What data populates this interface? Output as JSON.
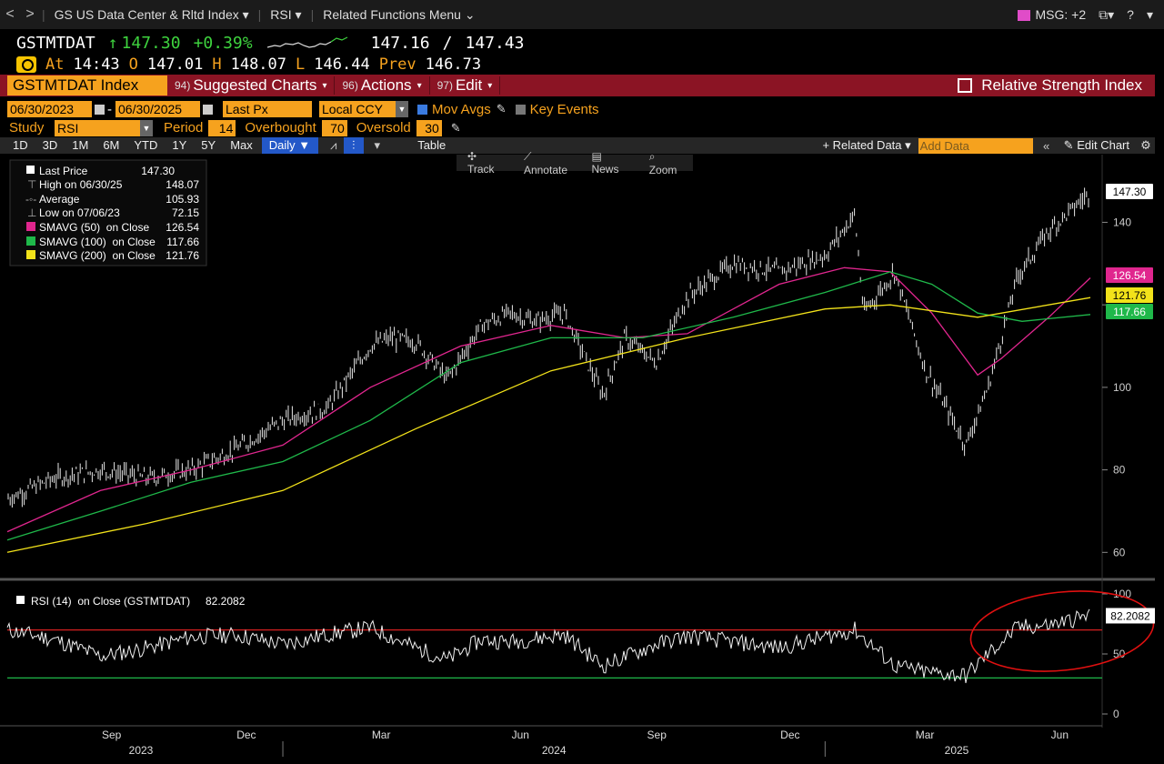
{
  "nav": {
    "back": "<",
    "forward": ">",
    "index_menu": "GS US Data Center & Rltd Index",
    "study_menu": "RSI",
    "related_menu": "Related Functions Menu",
    "msg": "MSG: +2"
  },
  "quote": {
    "ticker": "GSTMTDAT",
    "arrow": "↑",
    "last": "147.30",
    "change_pct": "+0.39%",
    "bid": "147.16",
    "slash": "/",
    "ask": "147.43",
    "at_label": "At",
    "time": "14:43",
    "open_label": "O",
    "open": "147.01",
    "high_label": "H",
    "high": "148.07",
    "low_label": "L",
    "low": "146.44",
    "prev_label": "Prev",
    "prev": "146.73"
  },
  "funcbar": {
    "security": "GSTMTDAT Index",
    "menu1_num": "94)",
    "menu1": "Suggested Charts",
    "menu2_num": "96)",
    "menu2": "Actions",
    "menu3_num": "97)",
    "menu3": "Edit",
    "title": "Relative Strength Index"
  },
  "settings": {
    "start_date": "06/30/2023",
    "dash": "-",
    "end_date": "06/30/2025",
    "field": "Last Px",
    "currency": "Local CCY",
    "mov_avgs": "Mov Avgs",
    "key_events": "Key Events",
    "study_label": "Study",
    "study": "RSI",
    "period_label": "Period",
    "period": "14",
    "overbought_label": "Overbought",
    "overbought": "70",
    "oversold_label": "Oversold",
    "oversold": "30"
  },
  "toolbar": {
    "tf": [
      "1D",
      "3D",
      "1M",
      "6M",
      "YTD",
      "1Y",
      "5Y",
      "Max"
    ],
    "frequency": "Daily ▼",
    "table": "Table",
    "related_data": "+ Related Data ▾",
    "add_data_placeholder": "Add Data",
    "edit_chart": "Edit Chart"
  },
  "chart_tools": {
    "track": "Track",
    "annotate": "Annotate",
    "news": "News",
    "zoom": "Zoom"
  },
  "legend": {
    "last_price": "Last Price",
    "last_price_val": "147.30",
    "high": "High on 06/30/25",
    "high_val": "148.07",
    "average": "Average",
    "average_val": "105.93",
    "low": "Low on 07/06/23",
    "low_val": "72.15",
    "sma50": "SMAVG (50)  on Close",
    "sma50_val": "126.54",
    "sma100": "SMAVG (100)  on Close",
    "sma100_val": "117.66",
    "sma200": "SMAVG (200)  on Close",
    "sma200_val": "121.76",
    "rsi": "RSI (14)  on Close (GSTMTDAT)",
    "rsi_val": "82.2082"
  },
  "colors": {
    "sma50": "#e0268e",
    "sma100": "#1fb84a",
    "sma200": "#f2e21a",
    "overbought_line": "#d42020",
    "oversold_line": "#1fb84a",
    "orange_field": "#f6a21e",
    "function_bar": "#8b1424",
    "annotation_circle": "#e01010"
  },
  "chart_data": [
    {
      "type": "line",
      "series": [
        {
          "name": "Last Price",
          "x": [
            "2023-06-30",
            "2023-08-01",
            "2023-09-01",
            "2023-10-02",
            "2023-11-01",
            "2023-12-01",
            "2024-01-02",
            "2024-02-01",
            "2024-03-01",
            "2024-03-15",
            "2024-04-01",
            "2024-04-22",
            "2024-05-15",
            "2024-06-03",
            "2024-06-20",
            "2024-07-10",
            "2024-08-05",
            "2024-08-20",
            "2024-09-10",
            "2024-10-01",
            "2024-11-01",
            "2024-12-02",
            "2025-01-02",
            "2025-01-22",
            "2025-01-28",
            "2025-02-18",
            "2025-03-10",
            "2025-04-07",
            "2025-04-22",
            "2025-05-12",
            "2025-06-02",
            "2025-06-30"
          ],
          "values": [
            73,
            78,
            80,
            78,
            80,
            85,
            92,
            95,
            110,
            112,
            111,
            102,
            115,
            118,
            116,
            118,
            98,
            112,
            106,
            122,
            130,
            128,
            132,
            142,
            118,
            128,
            105,
            86,
            100,
            127,
            138,
            147.3
          ]
        },
        {
          "name": "SMAVG (50)  on Close",
          "x": [
            "2023-06-30",
            "2023-09-01",
            "2023-11-01",
            "2024-01-02",
            "2024-03-01",
            "2024-05-01",
            "2024-07-01",
            "2024-08-20",
            "2024-10-01",
            "2024-12-02",
            "2025-01-15",
            "2025-02-15",
            "2025-03-15",
            "2025-04-15",
            "2025-05-01",
            "2025-06-02",
            "2025-06-30"
          ],
          "values": [
            65,
            75,
            80,
            86,
            100,
            110,
            115,
            112,
            113,
            125,
            129,
            128,
            118,
            103,
            107,
            117,
            126.54
          ]
        },
        {
          "name": "SMAVG (100)  on Close",
          "x": [
            "2023-06-30",
            "2023-09-01",
            "2023-11-01",
            "2024-01-02",
            "2024-03-01",
            "2024-05-01",
            "2024-07-01",
            "2024-09-01",
            "2024-11-01",
            "2025-01-02",
            "2025-02-15",
            "2025-03-15",
            "2025-04-15",
            "2025-05-15",
            "2025-06-30"
          ],
          "values": [
            63,
            70,
            77,
            82,
            92,
            106,
            112,
            112,
            117,
            123,
            128,
            125,
            118,
            116,
            117.66
          ]
        },
        {
          "name": "SMAVG (200)  on Close",
          "x": [
            "2023-06-30",
            "2023-10-02",
            "2024-01-02",
            "2024-04-01",
            "2024-07-01",
            "2024-10-01",
            "2025-01-02",
            "2025-02-15",
            "2025-04-15",
            "2025-06-30"
          ],
          "values": [
            60,
            67,
            75,
            90,
            104,
            112,
            119,
            120,
            117,
            121.76
          ]
        }
      ],
      "ylim": [
        55,
        152
      ],
      "yticks": [
        60,
        80,
        100,
        120,
        140
      ],
      "ytick_labels": [
        "60",
        "80",
        "100",
        "",
        "140"
      ],
      "price_tags": [
        {
          "value": 147.3,
          "label": "147.30"
        },
        {
          "value": 126.54,
          "label": "126.54"
        },
        {
          "value": 121.76,
          "label": "121.76"
        },
        {
          "value": 117.66,
          "label": "117.66"
        }
      ]
    },
    {
      "type": "line",
      "series": [
        {
          "name": "RSI (14)  on Close (GSTMTDAT)",
          "x": [
            "2023-06-30",
            "2023-08-01",
            "2023-09-01",
            "2023-10-02",
            "2023-11-01",
            "2023-12-01",
            "2024-01-02",
            "2024-02-01",
            "2024-03-01",
            "2024-04-01",
            "2024-04-22",
            "2024-05-15",
            "2024-06-03",
            "2024-07-10",
            "2024-08-05",
            "2024-09-10",
            "2024-10-01",
            "2024-11-01",
            "2024-12-02",
            "2025-01-22",
            "2025-02-18",
            "2025-03-10",
            "2025-04-07",
            "2025-04-22",
            "2025-05-12",
            "2025-06-02",
            "2025-06-30"
          ],
          "values": [
            70,
            62,
            48,
            55,
            64,
            66,
            58,
            66,
            72,
            55,
            45,
            62,
            60,
            66,
            40,
            58,
            65,
            60,
            55,
            70,
            40,
            35,
            32,
            50,
            72,
            74,
            82.2082
          ]
        }
      ],
      "ylim": [
        0,
        100
      ],
      "yticks": [
        0,
        50,
        100
      ],
      "overbought": 70,
      "oversold": 30
    }
  ],
  "xaxis": {
    "months": [
      "Sep",
      "Dec",
      "Mar",
      "Jun",
      "Sep",
      "Dec",
      "Mar",
      "Jun"
    ],
    "years": [
      "2023",
      "2024",
      "2025"
    ]
  }
}
